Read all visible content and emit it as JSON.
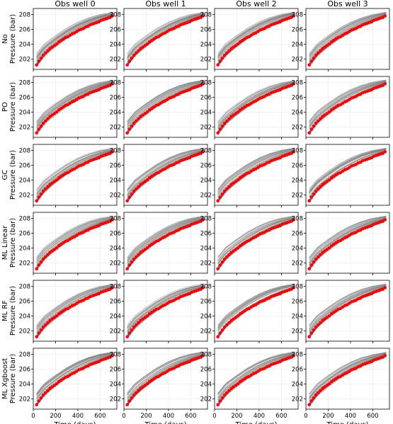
{
  "chart_data": {
    "type": "line",
    "grid": true,
    "layout": "6 rows x 4 columns of subplots",
    "col_titles": [
      "Obs well 0",
      "Obs well 1",
      "Obs well 2",
      "Obs well 3"
    ],
    "row_labels": [
      "No",
      "PO",
      "GC",
      "ML Linear",
      "ML RF",
      "ML Xgboost"
    ],
    "ylabel": "Pressure (bar)",
    "xlabel": "Time (days)",
    "xlim": [
      0,
      750
    ],
    "ylim": [
      200.6,
      208.8
    ],
    "xticks": [
      0,
      200,
      400,
      600
    ],
    "yticks": [
      202,
      204,
      206,
      208
    ],
    "series": [
      {
        "name": "",
        "color": "#808080",
        "style": "thin lines",
        "description_values": {
          "x": [
            30,
            100,
            200,
            300,
            400,
            500,
            600,
            720
          ],
          "y_band_low": [
            200.9,
            202.3,
            203.6,
            204.7,
            205.6,
            206.4,
            207.1,
            207.8
          ],
          "y_band_high": [
            202.8,
            204.1,
            205.2,
            206.2,
            207.0,
            207.6,
            208.0,
            208.3
          ]
        }
      },
      {
        "name": "",
        "color": "#1f77b4",
        "style": "line",
        "x": [
          30,
          100,
          200,
          300,
          400,
          500,
          600,
          720
        ],
        "y": [
          201.2,
          202.6,
          203.9,
          204.9,
          205.8,
          206.6,
          207.2,
          207.9
        ]
      },
      {
        "name": "",
        "color": "#ff0000",
        "style": "markers",
        "x": [
          30,
          50,
          70,
          90,
          110,
          130,
          150,
          170,
          190,
          210,
          230,
          250,
          270,
          290,
          310,
          330,
          350,
          370,
          390,
          410,
          430,
          450,
          470,
          490,
          510,
          530,
          550,
          570,
          590,
          610,
          630,
          650,
          670,
          690,
          710
        ],
        "y": [
          201.2,
          201.7,
          202.1,
          202.5,
          202.8,
          203.1,
          203.4,
          203.6,
          203.8,
          204.0,
          204.3,
          204.5,
          204.7,
          204.9,
          205.0,
          205.2,
          205.4,
          205.5,
          205.7,
          205.9,
          206.0,
          206.1,
          206.3,
          206.4,
          206.6,
          206.7,
          206.8,
          206.9,
          207.0,
          207.2,
          207.3,
          207.4,
          207.5,
          207.6,
          207.8
        ]
      }
    ]
  }
}
